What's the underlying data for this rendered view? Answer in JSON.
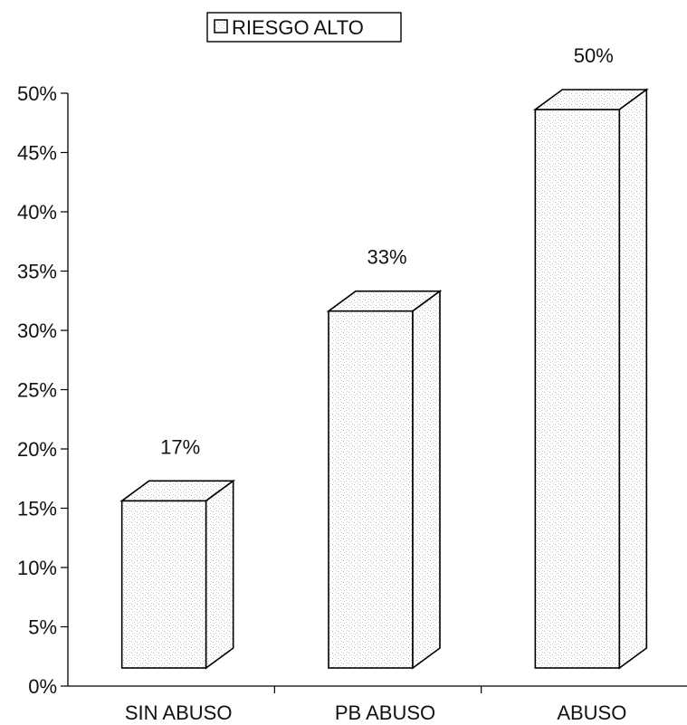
{
  "chart_data": {
    "type": "bar",
    "categories": [
      "SIN ABUSO",
      "PB ABUSO",
      "ABUSO"
    ],
    "series": [
      {
        "name": "RIESGO ALTO",
        "values": [
          17,
          33,
          50
        ]
      }
    ],
    "data_labels": [
      "17%",
      "33%",
      "50%"
    ],
    "ylim": [
      0,
      50
    ],
    "yticks": [
      "0%",
      "5%",
      "10%",
      "15%",
      "20%",
      "25%",
      "30%",
      "35%",
      "40%",
      "45%",
      "50%"
    ],
    "legend": {
      "position": "top-center",
      "label": "RIESGO ALTO"
    },
    "grid": false,
    "style": "3d-column"
  }
}
